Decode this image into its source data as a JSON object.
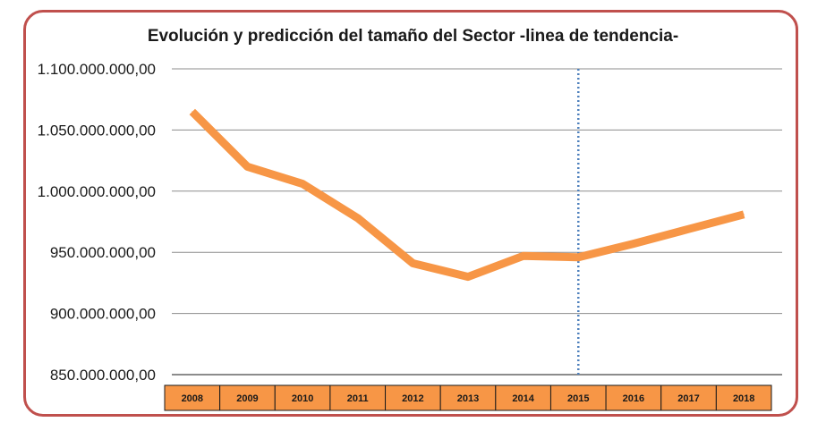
{
  "chart_data": {
    "type": "line",
    "title": "Evolución y predicción del tamaño del Sector -linea de tendencia-",
    "xlabel": "",
    "ylabel": "",
    "categories": [
      "2008",
      "2009",
      "2010",
      "2011",
      "2012",
      "2013",
      "2014",
      "2015",
      "2016",
      "2017",
      "2018"
    ],
    "series": [
      {
        "values": [
          1065000000,
          1020000000,
          1006000000,
          978000000,
          941000000,
          930000000,
          947000000,
          946000000,
          957000000,
          969000000,
          981000000
        ]
      }
    ],
    "ylim": [
      850000000,
      1100000000
    ],
    "y_ticks": [
      {
        "value": 850000000,
        "label": "850.000.000,00"
      },
      {
        "value": 900000000,
        "label": "900.000.000,00"
      },
      {
        "value": 950000000,
        "label": "950.000.000,00"
      },
      {
        "value": 1000000000,
        "label": "1.000.000.000,00"
      },
      {
        "value": 1050000000,
        "label": "1.050.000.000,00"
      },
      {
        "value": 1100000000,
        "label": "1.100.000.000,00"
      }
    ],
    "grid": true,
    "legend": "none",
    "forecast_divider_at": "2015",
    "colors": {
      "line": "#f79646",
      "grid": "#8c8c8c",
      "divider": "#4f81bd",
      "category_cell": "#f79646",
      "frame": "#c0504d"
    }
  }
}
